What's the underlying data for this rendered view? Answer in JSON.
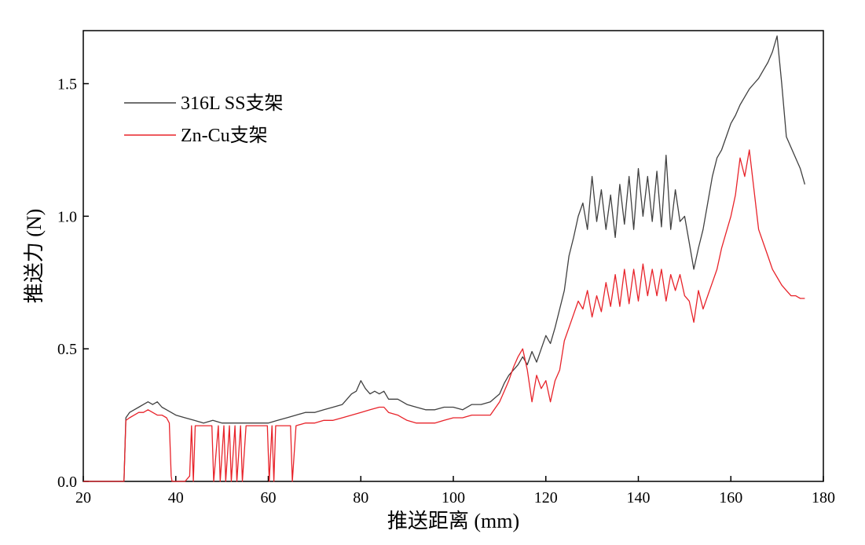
{
  "chart_data": {
    "type": "line",
    "title": "",
    "xlabel": "推送距离 (mm)",
    "ylabel": "推送力 (N)",
    "xlim": [
      20,
      180
    ],
    "ylim": [
      0,
      1.7
    ],
    "xticks": [
      20,
      40,
      60,
      80,
      100,
      120,
      140,
      160,
      180
    ],
    "xtick_labels": [
      "20",
      "40",
      "60",
      "80",
      "100",
      "120",
      "140",
      "160",
      "180"
    ],
    "yticks": [
      0,
      0.5,
      1.0,
      1.5
    ],
    "ytick_labels": [
      "0.0",
      "0.5",
      "1.0",
      "1.5"
    ],
    "grid": false,
    "legend_position": "top-left",
    "series": [
      {
        "name": "316L SS支架",
        "color": "#404040",
        "x": [
          20,
          28.8,
          29.2,
          30,
          31,
          32,
          33,
          34,
          35,
          36,
          37,
          38,
          39,
          40,
          42,
          44,
          46,
          48,
          50,
          52,
          54,
          56,
          58,
          60,
          62,
          64,
          66,
          68,
          70,
          72,
          74,
          76,
          78,
          79,
          80,
          81,
          82,
          83,
          84,
          85,
          86,
          88,
          90,
          92,
          94,
          96,
          98,
          100,
          102,
          104,
          106,
          108,
          110,
          111,
          112,
          113,
          114,
          115,
          116,
          117,
          118,
          119,
          120,
          121,
          122,
          123,
          124,
          125,
          126,
          127,
          128,
          129,
          130,
          131,
          132,
          133,
          134,
          135,
          136,
          137,
          138,
          139,
          140,
          141,
          142,
          143,
          144,
          145,
          146,
          147,
          148,
          149,
          150,
          151,
          152,
          153,
          154,
          155,
          156,
          157,
          158,
          159,
          160,
          161,
          162,
          163,
          164,
          165,
          166,
          167,
          168,
          169,
          170,
          171,
          172,
          173,
          174,
          175,
          176
        ],
        "values": [
          0.0,
          0.0,
          0.24,
          0.26,
          0.27,
          0.28,
          0.29,
          0.3,
          0.29,
          0.3,
          0.28,
          0.27,
          0.26,
          0.25,
          0.24,
          0.23,
          0.22,
          0.23,
          0.22,
          0.22,
          0.22,
          0.22,
          0.22,
          0.22,
          0.23,
          0.24,
          0.25,
          0.26,
          0.26,
          0.27,
          0.28,
          0.29,
          0.33,
          0.34,
          0.38,
          0.35,
          0.33,
          0.34,
          0.33,
          0.34,
          0.31,
          0.31,
          0.29,
          0.28,
          0.27,
          0.27,
          0.28,
          0.28,
          0.27,
          0.29,
          0.29,
          0.3,
          0.33,
          0.37,
          0.4,
          0.42,
          0.44,
          0.47,
          0.44,
          0.49,
          0.45,
          0.5,
          0.55,
          0.52,
          0.58,
          0.65,
          0.72,
          0.85,
          0.92,
          1.0,
          1.05,
          0.95,
          1.15,
          0.98,
          1.1,
          0.95,
          1.08,
          0.92,
          1.12,
          0.97,
          1.15,
          0.95,
          1.18,
          1.0,
          1.15,
          0.98,
          1.17,
          0.96,
          1.23,
          0.95,
          1.1,
          0.98,
          1.0,
          0.9,
          0.8,
          0.88,
          0.95,
          1.05,
          1.15,
          1.22,
          1.25,
          1.3,
          1.35,
          1.38,
          1.42,
          1.45,
          1.48,
          1.5,
          1.52,
          1.55,
          1.58,
          1.62,
          1.68,
          1.5,
          1.3,
          1.26,
          1.22,
          1.18,
          1.12
        ]
      },
      {
        "name": "Zn-Cu支架",
        "color": "#e8232a",
        "x": [
          20,
          28.8,
          29.2,
          30,
          31,
          32,
          33,
          34,
          35,
          36,
          37,
          38,
          38.6,
          39,
          39.2,
          40,
          42,
          43,
          43.4,
          43.8,
          44.2,
          46,
          47.8,
          48.2,
          49.2,
          49.6,
          50.4,
          50.8,
          51.6,
          52,
          52.8,
          53.2,
          54,
          54.4,
          55.2,
          55.6,
          58,
          59.8,
          60.2,
          60.8,
          61.2,
          61.6,
          62,
          64,
          64.8,
          65.2,
          66,
          68,
          70,
          72,
          74,
          76,
          78,
          80,
          82,
          84,
          85,
          86,
          88,
          90,
          92,
          94,
          96,
          98,
          100,
          102,
          104,
          106,
          108,
          110,
          111,
          112,
          113,
          114,
          115,
          116,
          117,
          118,
          119,
          120,
          121,
          122,
          123,
          124,
          125,
          126,
          127,
          128,
          129,
          130,
          131,
          132,
          133,
          134,
          135,
          136,
          137,
          138,
          139,
          140,
          141,
          142,
          143,
          144,
          145,
          146,
          147,
          148,
          149,
          150,
          151,
          152,
          153,
          154,
          155,
          156,
          157,
          158,
          159,
          160,
          161,
          162,
          163,
          164,
          165,
          166,
          167,
          168,
          169,
          170,
          171,
          172,
          173,
          174,
          175,
          176
        ],
        "values": [
          0.0,
          0.0,
          0.23,
          0.24,
          0.25,
          0.26,
          0.26,
          0.27,
          0.26,
          0.25,
          0.25,
          0.24,
          0.22,
          0.02,
          0.0,
          0.0,
          0.0,
          0.02,
          0.21,
          0.0,
          0.21,
          0.21,
          0.21,
          0.0,
          0.21,
          0.0,
          0.21,
          0.0,
          0.21,
          0.0,
          0.21,
          0.0,
          0.21,
          0.0,
          0.21,
          0.21,
          0.21,
          0.21,
          0.0,
          0.21,
          0.0,
          0.21,
          0.21,
          0.21,
          0.21,
          0.0,
          0.21,
          0.22,
          0.22,
          0.23,
          0.23,
          0.24,
          0.25,
          0.26,
          0.27,
          0.28,
          0.28,
          0.26,
          0.25,
          0.23,
          0.22,
          0.22,
          0.22,
          0.23,
          0.24,
          0.24,
          0.25,
          0.25,
          0.25,
          0.3,
          0.34,
          0.38,
          0.43,
          0.47,
          0.5,
          0.42,
          0.3,
          0.4,
          0.35,
          0.38,
          0.3,
          0.38,
          0.42,
          0.53,
          0.58,
          0.63,
          0.68,
          0.65,
          0.72,
          0.62,
          0.7,
          0.64,
          0.75,
          0.66,
          0.78,
          0.66,
          0.8,
          0.67,
          0.8,
          0.68,
          0.82,
          0.7,
          0.8,
          0.7,
          0.8,
          0.68,
          0.78,
          0.72,
          0.78,
          0.7,
          0.68,
          0.6,
          0.72,
          0.65,
          0.7,
          0.75,
          0.8,
          0.88,
          0.94,
          1.0,
          1.08,
          1.22,
          1.15,
          1.25,
          1.1,
          0.95,
          0.9,
          0.85,
          0.8,
          0.77,
          0.74,
          0.72,
          0.7,
          0.7,
          0.69,
          0.69
        ]
      }
    ]
  }
}
